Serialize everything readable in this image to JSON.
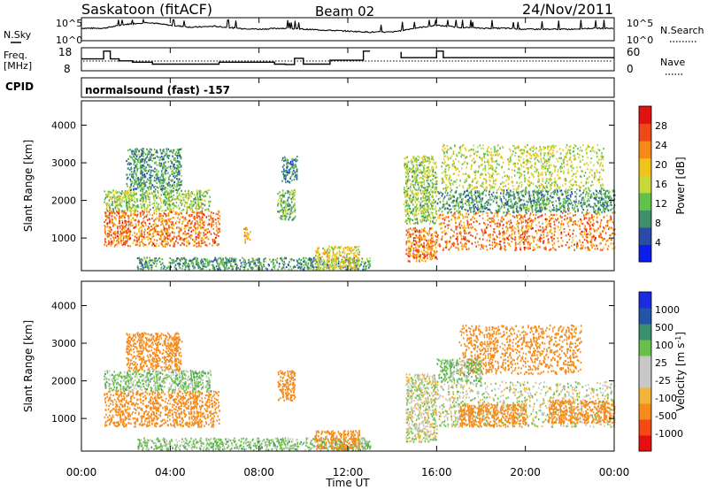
{
  "header": {
    "station": "Saskatoon (fitACF)",
    "beam": "Beam 02",
    "date": "24/Nov/2011"
  },
  "top_panels": {
    "nsky_label": "N.Sky",
    "nsky_ticks": [
      "10^5",
      "10^0"
    ],
    "nsearch_label": "N.Search",
    "nsearch_ticks": [
      "10^5",
      "10^0"
    ],
    "freq_label": "Freq.",
    "freq_unit": "[MHz]",
    "freq_ticks": [
      "18",
      "8"
    ],
    "nave_label": "Nave",
    "nave_ticks": [
      "60",
      "0"
    ],
    "cpid_label": "CPID",
    "cpid_text": "normalsound (fast) -157"
  },
  "xaxis": {
    "label": "Time UT",
    "ticks": [
      "00:00",
      "04:00",
      "08:00",
      "12:00",
      "16:00",
      "20:00",
      "00:00"
    ]
  },
  "colors": {
    "power_scale": [
      "#0b1de8",
      "#2a4ca8",
      "#3f8f6d",
      "#62c14a",
      "#c8d838",
      "#f2c21b",
      "#f68a18",
      "#ee4a17",
      "#e01212"
    ],
    "velocity_scale": [
      "#e60f0f",
      "#f24a12",
      "#f68b1b",
      "#f2b53b",
      "#c8c8c8",
      "#c8c8c8",
      "#6abf4b",
      "#3a8f6c",
      "#2255a8",
      "#1c2ae0"
    ]
  },
  "chart_data": [
    {
      "type": "line",
      "title": "",
      "ylabel": "N.Sky",
      "xlim": [
        0,
        24
      ],
      "ylim": [
        "10^0",
        "10^5"
      ],
      "x": [
        0,
        1,
        2,
        3,
        4,
        5,
        6,
        7,
        8,
        9,
        10,
        11,
        12,
        13,
        14,
        15,
        16,
        17,
        18,
        19,
        20,
        21,
        22,
        23,
        24
      ],
      "series": [
        {
          "values": [
            0.55,
            0.55,
            0.75,
            0.85,
            0.7,
            0.6,
            0.65,
            0.55,
            0.5,
            0.55,
            0.5,
            0.45,
            0.4,
            0.35,
            0.35,
            0.55,
            0.7,
            0.6,
            0.55,
            0.55,
            0.5,
            0.5,
            0.5,
            0.55,
            0.55
          ]
        }
      ]
    },
    {
      "type": "line",
      "title": "",
      "ylabel": "Freq. [MHz]",
      "xlim": [
        0,
        24
      ],
      "ylim": [
        8,
        18
      ],
      "series": [
        {
          "values": [
            [
              0.0,
              13.2
            ],
            [
              1.0,
              13.2
            ],
            [
              1.0,
              17.2
            ],
            [
              1.3,
              17.2
            ],
            [
              1.3,
              13.2
            ],
            [
              1.7,
              13.2
            ],
            [
              1.7,
              12.2
            ],
            [
              2.3,
              12.2
            ],
            [
              2.3,
              11.5
            ],
            [
              3.2,
              11.5
            ],
            [
              3.2,
              10.5
            ],
            [
              6.2,
              10.5
            ],
            [
              6.2,
              11.5
            ],
            [
              8.7,
              11.5
            ],
            [
              8.7,
              10.5
            ],
            [
              9.2,
              10.5
            ],
            [
              9.2,
              10.3
            ],
            [
              9.6,
              10.3
            ],
            [
              9.6,
              13.5
            ],
            [
              10.0,
              13.5
            ],
            [
              10.0,
              10.5
            ],
            [
              11.2,
              10.5
            ],
            [
              11.2,
              12.5
            ],
            [
              12.7,
              12.5
            ],
            [
              12.7,
              17.2
            ],
            [
              13.0,
              17.2
            ],
            [
              13.0,
              17.2
            ]
          ]
        },
        {
          "values": [
            [
              14.4,
              16.8
            ],
            [
              14.4,
              13.8
            ],
            [
              16.0,
              13.8
            ],
            [
              16.0,
              17.2
            ],
            [
              16.3,
              17.2
            ],
            [
              16.3,
              13.8
            ],
            [
              24.0,
              13.8
            ]
          ]
        }
      ]
    },
    {
      "type": "heatmap",
      "title": "",
      "xlabel": "Time UT",
      "ylabel": "Slant Range [km]",
      "xlim": [
        0,
        24
      ],
      "ylim": [
        180,
        4600
      ],
      "yticks": [
        "1000",
        "2000",
        "3000",
        "4000"
      ],
      "colorbar_label": "Power [dB]",
      "colorbar_ticks": [
        "4",
        "8",
        "12",
        "16",
        "20",
        "24",
        "28"
      ],
      "regions": [
        {
          "t0": 1.0,
          "t1": 6.2,
          "r0": 800,
          "r1": 1750,
          "value": 24
        },
        {
          "t0": 1.0,
          "t1": 5.8,
          "r0": 1750,
          "r1": 2300,
          "value": 14
        },
        {
          "t0": 2.0,
          "t1": 4.5,
          "r0": 2300,
          "r1": 3400,
          "value": 10
        },
        {
          "t0": 7.3,
          "t1": 7.6,
          "r0": 900,
          "r1": 1300,
          "value": 20
        },
        {
          "t0": 8.8,
          "t1": 9.6,
          "r0": 1500,
          "r1": 2300,
          "value": 12
        },
        {
          "t0": 9.0,
          "t1": 9.7,
          "r0": 2500,
          "r1": 3200,
          "value": 8
        },
        {
          "t0": 2.5,
          "t1": 13.0,
          "r0": 180,
          "r1": 500,
          "value": 10
        },
        {
          "t0": 10.5,
          "t1": 12.5,
          "r0": 200,
          "r1": 800,
          "value": 18
        },
        {
          "t0": 14.6,
          "t1": 16.0,
          "r0": 400,
          "r1": 1300,
          "value": 24
        },
        {
          "t0": 16.0,
          "t1": 24.0,
          "r0": 700,
          "r1": 1700,
          "value": 24
        },
        {
          "t0": 16.0,
          "t1": 24.0,
          "r0": 1700,
          "r1": 2300,
          "value": 10
        },
        {
          "t0": 16.2,
          "t1": 23.5,
          "r0": 2300,
          "r1": 3500,
          "value": 16
        },
        {
          "t0": 14.5,
          "t1": 16.0,
          "r0": 1400,
          "r1": 3200,
          "value": 14
        }
      ]
    },
    {
      "type": "heatmap",
      "title": "",
      "xlabel": "Time UT",
      "ylabel": "Slant Range [km]",
      "xlim": [
        0,
        24
      ],
      "ylim": [
        180,
        4600
      ],
      "yticks": [
        "1000",
        "2000",
        "3000",
        "4000"
      ],
      "colorbar_label": "Velocity [m s-1]",
      "colorbar_ticks": [
        "1000",
        "500",
        "100",
        "25",
        "-25",
        "-100",
        "-500",
        "-1000"
      ],
      "regions": [
        {
          "t0": 1.0,
          "t1": 6.2,
          "r0": 800,
          "r1": 1750,
          "value": -400
        },
        {
          "t0": 1.0,
          "t1": 5.8,
          "r0": 1750,
          "r1": 2300,
          "value": 50
        },
        {
          "t0": 2.0,
          "t1": 4.5,
          "r0": 2300,
          "r1": 3300,
          "value": -200
        },
        {
          "t0": 8.8,
          "t1": 9.6,
          "r0": 1500,
          "r1": 2300,
          "value": -300
        },
        {
          "t0": 2.5,
          "t1": 13.0,
          "r0": 180,
          "r1": 500,
          "value": 50
        },
        {
          "t0": 10.5,
          "t1": 12.5,
          "r0": 200,
          "r1": 700,
          "value": -150
        },
        {
          "t0": 14.6,
          "t1": 16.0,
          "r0": 400,
          "r1": 2200,
          "value": 0
        },
        {
          "t0": 16.0,
          "t1": 24.0,
          "r0": 800,
          "r1": 2000,
          "value": 0
        },
        {
          "t0": 17.0,
          "t1": 20.0,
          "r0": 800,
          "r1": 1400,
          "value": -200
        },
        {
          "t0": 21.0,
          "t1": 24.0,
          "r0": 900,
          "r1": 1500,
          "value": -400
        },
        {
          "t0": 17.0,
          "t1": 22.5,
          "r0": 2200,
          "r1": 3500,
          "value": -400
        },
        {
          "t0": 16.0,
          "t1": 18.0,
          "r0": 2000,
          "r1": 2600,
          "value": 50
        }
      ]
    }
  ]
}
